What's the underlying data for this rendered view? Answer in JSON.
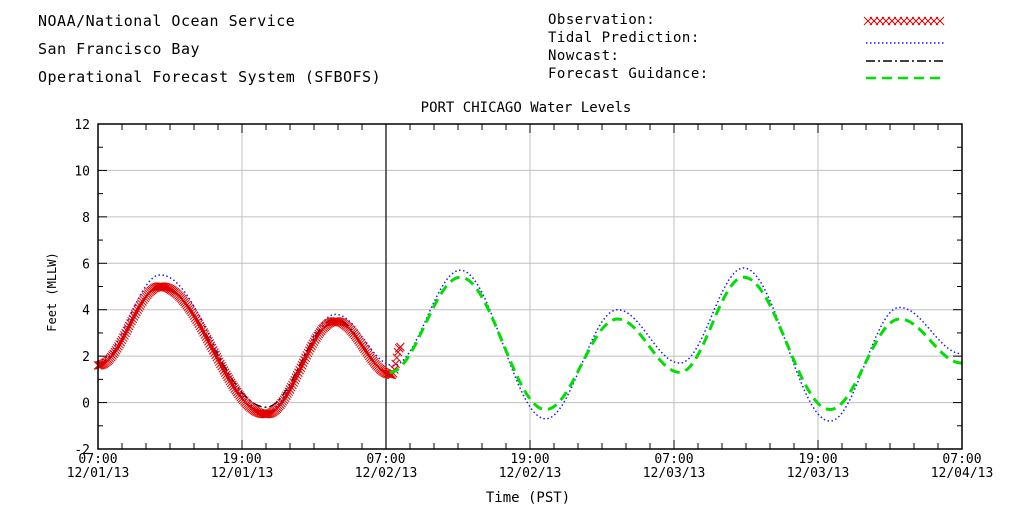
{
  "header": {
    "line1": "NOAA/National Ocean Service",
    "line2": "San Francisco Bay",
    "line3": "Operational Forecast System (SFBOFS)"
  },
  "legend": {
    "observation": "Observation:",
    "tidal": "Tidal Prediction:",
    "nowcast": "Nowcast:",
    "forecast": "Forecast Guidance:"
  },
  "colors": {
    "observation": "#e00000",
    "tidal": "#1a1aff",
    "nowcast": "#000000",
    "forecast": "#00e000",
    "grid": "#c0c0c0"
  },
  "chart_data": {
    "type": "line",
    "title": "PORT CHICAGO Water Levels",
    "xlabel": "Time (PST)",
    "ylabel": "Feet (MLLW)",
    "xlim_hours": [
      0,
      72
    ],
    "ylim": [
      -2,
      12
    ],
    "yticks": [
      -2,
      0,
      2,
      4,
      6,
      8,
      10,
      12
    ],
    "xticks": [
      {
        "h": 0,
        "time": "07:00",
        "date": "12/01/13"
      },
      {
        "h": 12,
        "time": "19:00",
        "date": "12/01/13"
      },
      {
        "h": 24,
        "time": "07:00",
        "date": "12/02/13"
      },
      {
        "h": 36,
        "time": "19:00",
        "date": "12/02/13"
      },
      {
        "h": 48,
        "time": "07:00",
        "date": "12/03/13"
      },
      {
        "h": 60,
        "time": "19:00",
        "date": "12/03/13"
      },
      {
        "h": 72,
        "time": "07:00",
        "date": "12/04/13"
      }
    ],
    "nowcast_boundary_hour": 24,
    "series": [
      {
        "name": "Tidal Prediction",
        "extrema": [
          [
            0,
            1.8
          ],
          [
            5.2,
            5.5
          ],
          [
            14.0,
            -0.4
          ],
          [
            19.8,
            3.8
          ],
          [
            24.6,
            1.6
          ],
          [
            30.2,
            5.7
          ],
          [
            37.3,
            -0.7
          ],
          [
            43.3,
            4.0
          ],
          [
            48.5,
            1.7
          ],
          [
            53.8,
            5.8
          ],
          [
            61.0,
            -0.8
          ],
          [
            66.8,
            4.1
          ],
          [
            72,
            2.1
          ]
        ]
      },
      {
        "name": "Observation",
        "extrema": [
          [
            0,
            1.6
          ],
          [
            5.2,
            5.0
          ],
          [
            14.0,
            -0.5
          ],
          [
            19.8,
            3.5
          ],
          [
            24.5,
            1.2
          ],
          [
            25.2,
            2.4
          ]
        ]
      },
      {
        "name": "Nowcast",
        "extrema": [
          [
            0,
            1.7
          ],
          [
            5.2,
            5.0
          ],
          [
            14.0,
            -0.2
          ],
          [
            19.8,
            3.6
          ],
          [
            24.3,
            1.3
          ]
        ]
      },
      {
        "name": "Forecast Guidance",
        "extrema": [
          [
            24.3,
            1.3
          ],
          [
            30.2,
            5.4
          ],
          [
            37.3,
            -0.3
          ],
          [
            43.3,
            3.6
          ],
          [
            48.5,
            1.3
          ],
          [
            53.8,
            5.4
          ],
          [
            61.0,
            -0.3
          ],
          [
            66.8,
            3.6
          ],
          [
            72,
            1.7
          ]
        ]
      }
    ]
  }
}
